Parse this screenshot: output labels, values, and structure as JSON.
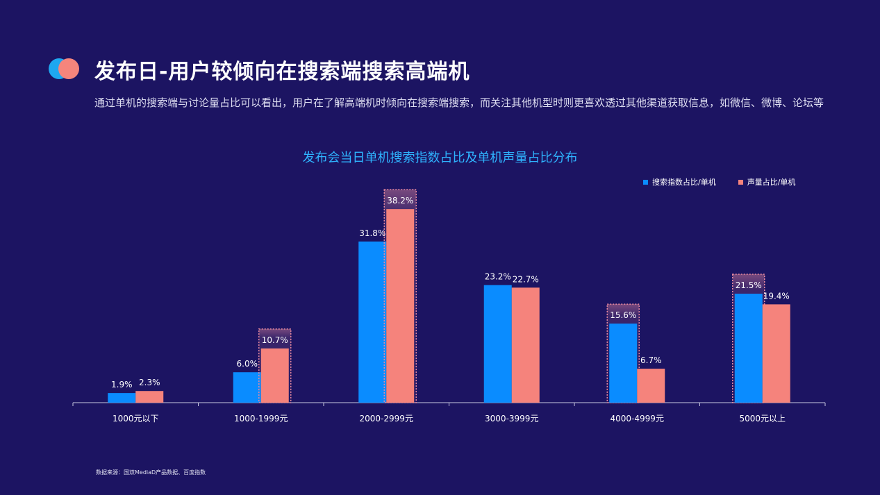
{
  "header": {
    "title": "发布日-用户较倾向在搜索端搜索高端机",
    "subtitle": "通过单机的搜索端与讨论量占比可以看出，用户在了解高端机时倾向在搜索端搜索，而关注其他机型时则更喜欢透过其他渠道获取信息，如微信、微博、论坛等"
  },
  "footer": {
    "source": "数据来源：国双MediaD产品数据、百度指数"
  },
  "colors": {
    "background": "#1c1462",
    "accent_title": "#2fb4ff",
    "series_search": "#0a8cff",
    "series_voice": "#f5837c"
  },
  "chart_data": {
    "type": "bar",
    "title": "发布会当日单机搜索指数占比及单机声量占比分布",
    "categories": [
      "1000元以下",
      "1000-1999元",
      "2000-2999元",
      "3000-3999元",
      "4000-4999元",
      "5000元以上"
    ],
    "series": [
      {
        "name": "搜索指数占比/单机",
        "values": [
          1.9,
          6.0,
          31.8,
          23.2,
          15.6,
          21.5
        ],
        "labels": [
          "1.9%",
          "6.0%",
          "31.8%",
          "23.2%",
          "15.6%",
          "21.5%"
        ]
      },
      {
        "name": "声量占比/单机",
        "values": [
          2.3,
          10.7,
          38.2,
          22.7,
          6.7,
          19.4
        ],
        "labels": [
          "2.3%",
          "10.7%",
          "38.2%",
          "22.7%",
          "6.7%",
          "19.4%"
        ]
      }
    ],
    "highlighted": [
      {
        "category": "1000-1999元",
        "series": "声量占比/单机"
      },
      {
        "category": "2000-2999元",
        "series": "声量占比/单机"
      },
      {
        "category": "4000-4999元",
        "series": "搜索指数占比/单机"
      },
      {
        "category": "5000元以上",
        "series": "搜索指数占比/单机"
      }
    ],
    "xlabel": "",
    "ylabel": "",
    "ylim": [
      0,
      40
    ],
    "grid": false,
    "legend_position": "top-right"
  }
}
